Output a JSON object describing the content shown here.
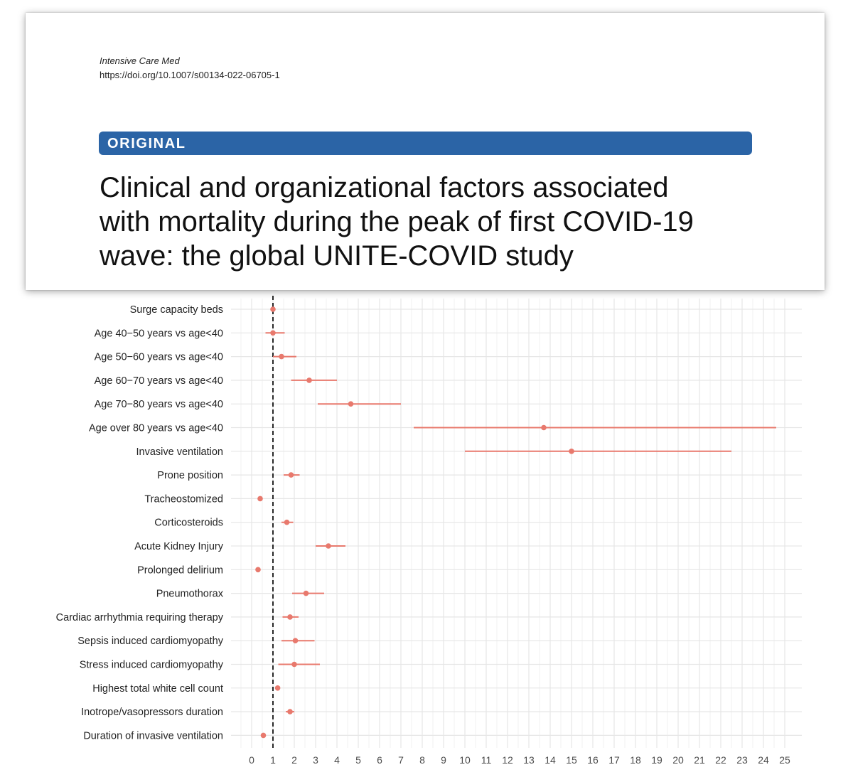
{
  "paper": {
    "journal": "Intensive Care Med",
    "doi": "https://doi.org/10.1007/s00134-022-06705-1",
    "section": "ORIGINAL",
    "title_lines": [
      "Clinical and organizational factors associated",
      "with mortality during the peak of first COVID-19",
      "wave: the global UNITE-COVID study"
    ]
  },
  "chart_data": {
    "type": "forest",
    "x_ticks": [
      0,
      1,
      2,
      3,
      4,
      5,
      6,
      7,
      8,
      9,
      10,
      11,
      12,
      13,
      14,
      15,
      16,
      17,
      18,
      19,
      20,
      21,
      22,
      23,
      24,
      25
    ],
    "xlim": [
      -0.3,
      25.6
    ],
    "reference_line": 1,
    "grid": true,
    "color": "#e8796d",
    "rows": [
      {
        "label": "Surge capacity beds",
        "estimate": 1.0,
        "lower": 0.95,
        "upper": 1.08
      },
      {
        "label": "Age 40−50 years vs age<40",
        "estimate": 1.0,
        "lower": 0.65,
        "upper": 1.55
      },
      {
        "label": "Age 50−60 years vs age<40",
        "estimate": 1.4,
        "lower": 1.0,
        "upper": 2.1
      },
      {
        "label": "Age 60−70 years vs age<40",
        "estimate": 2.7,
        "lower": 1.85,
        "upper": 4.0
      },
      {
        "label": "Age 70−80 years vs age<40",
        "estimate": 4.65,
        "lower": 3.1,
        "upper": 7.0
      },
      {
        "label": "Age over 80 years vs age<40",
        "estimate": 13.7,
        "lower": 7.6,
        "upper": 24.6
      },
      {
        "label": "Invasive ventilation",
        "estimate": 15.0,
        "lower": 10.0,
        "upper": 22.5
      },
      {
        "label": "Prone position",
        "estimate": 1.85,
        "lower": 1.5,
        "upper": 2.25
      },
      {
        "label": "Tracheostomized",
        "estimate": 0.4,
        "lower": 0.35,
        "upper": 0.45
      },
      {
        "label": "Corticosteroids",
        "estimate": 1.65,
        "lower": 1.4,
        "upper": 1.95
      },
      {
        "label": "Acute Kidney Injury",
        "estimate": 3.6,
        "lower": 3.0,
        "upper": 4.4
      },
      {
        "label": "Prolonged delirium",
        "estimate": 0.3,
        "lower": 0.25,
        "upper": 0.35
      },
      {
        "label": "Pneumothorax",
        "estimate": 2.55,
        "lower": 1.9,
        "upper": 3.4
      },
      {
        "label": "Cardiac arrhythmia requiring therapy",
        "estimate": 1.8,
        "lower": 1.45,
        "upper": 2.2
      },
      {
        "label": "Sepsis induced cardiomyopathy",
        "estimate": 2.05,
        "lower": 1.4,
        "upper": 2.95
      },
      {
        "label": "Stress induced cardiomyopathy",
        "estimate": 2.0,
        "lower": 1.25,
        "upper": 3.2
      },
      {
        "label": "Highest total white cell count",
        "estimate": 1.22,
        "lower": 1.12,
        "upper": 1.32
      },
      {
        "label": "Inotrope/vasopressors duration",
        "estimate": 1.8,
        "lower": 1.6,
        "upper": 2.0
      },
      {
        "label": "Duration of invasive ventilation",
        "estimate": 0.55,
        "lower": 0.5,
        "upper": 0.6
      }
    ]
  }
}
